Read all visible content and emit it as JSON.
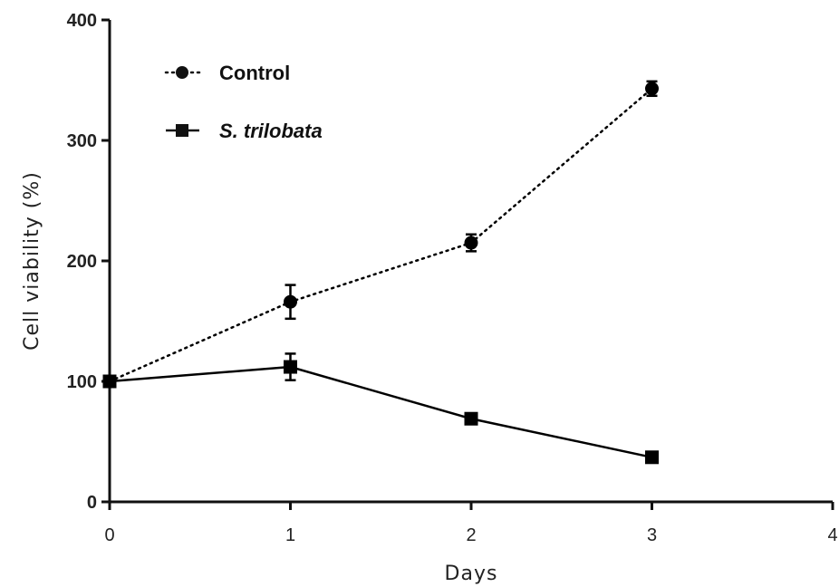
{
  "chart_data": {
    "type": "line",
    "xlabel": "Days",
    "ylabel": "Cell viability (%)",
    "xlim": [
      0,
      4
    ],
    "ylim": [
      0,
      400
    ],
    "xticks": [
      "0",
      "1",
      "2",
      "3",
      "4"
    ],
    "yticks": [
      "0",
      "100",
      "200",
      "300",
      "400"
    ],
    "grid": false,
    "legend_position": "top-left",
    "series": [
      {
        "name": "Control",
        "marker": "circle",
        "line_style": "dotted",
        "color": "#000000",
        "x": [
          0,
          1,
          2,
          3
        ],
        "y": [
          100,
          166,
          215,
          343
        ],
        "error": [
          0,
          14,
          7,
          6
        ]
      },
      {
        "name": "S. trilobata",
        "marker": "square",
        "line_style": "solid",
        "color": "#000000",
        "x": [
          0,
          1,
          2,
          3
        ],
        "y": [
          100,
          112,
          69,
          37
        ],
        "error": [
          0,
          11,
          0,
          0
        ]
      }
    ]
  }
}
